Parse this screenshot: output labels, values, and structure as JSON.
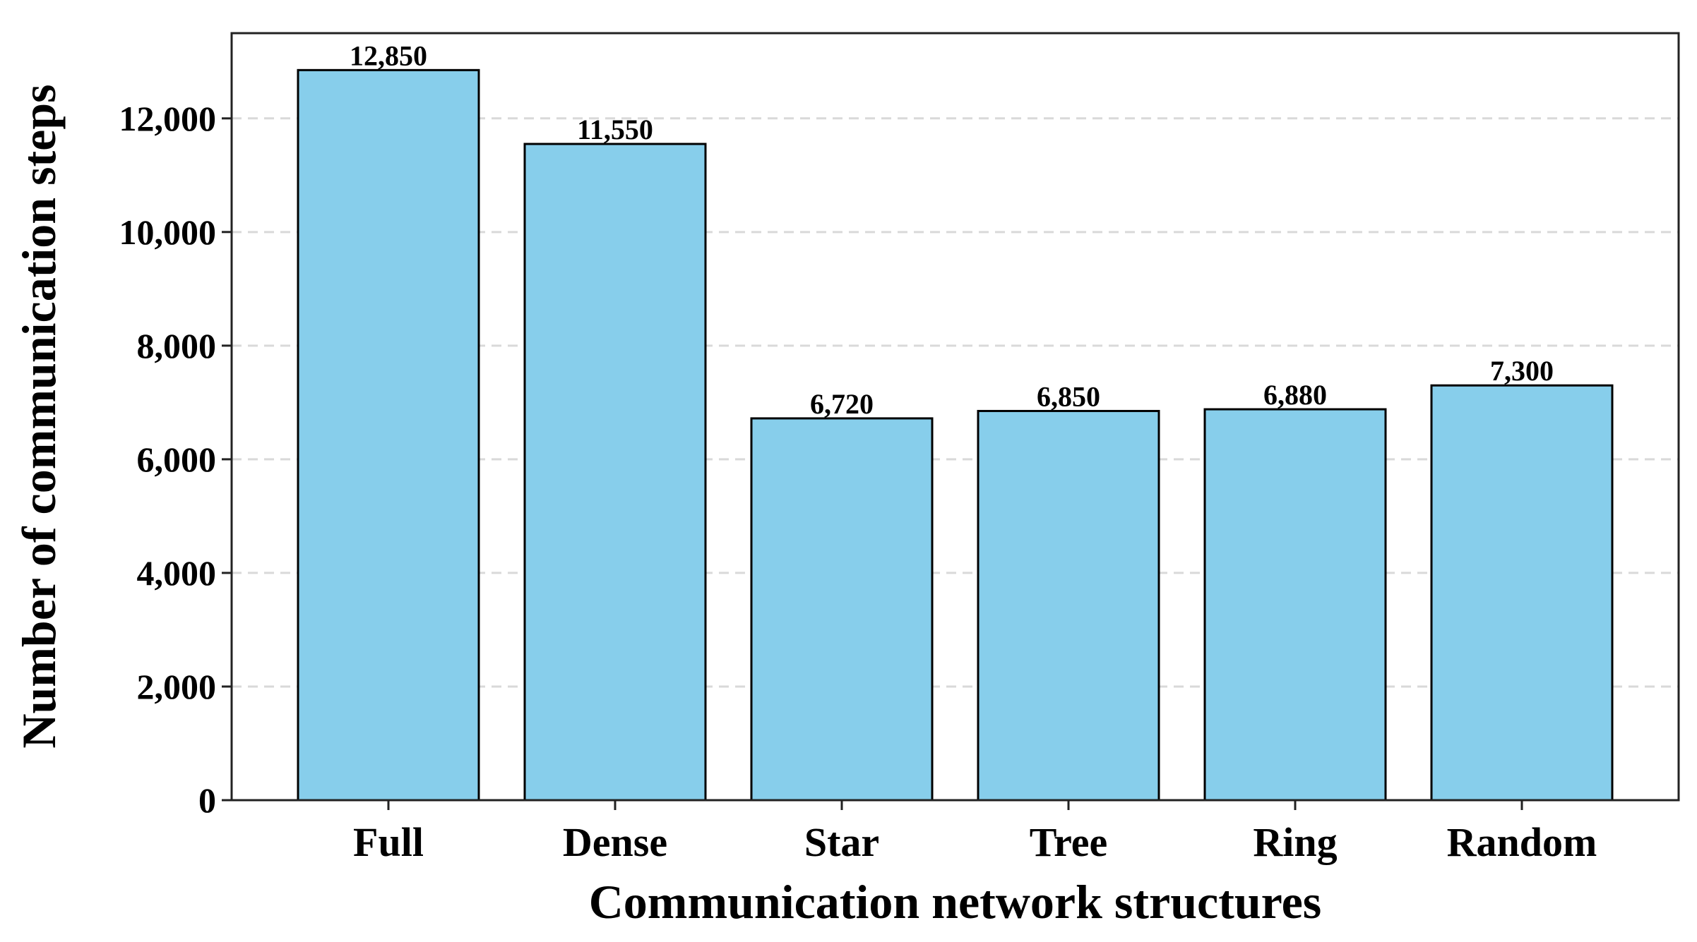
{
  "chart_data": {
    "type": "bar",
    "categories": [
      "Full",
      "Dense",
      "Star",
      "Tree",
      "Ring",
      "Random"
    ],
    "values": [
      12850,
      11550,
      6720,
      6850,
      6880,
      7300
    ],
    "data_labels": [
      "12,850",
      "11,550",
      "6,720",
      "6,850",
      "6,880",
      "7,300"
    ],
    "xlabel": "Communication network structures",
    "ylabel": "Number of communication steps",
    "ylim": [
      0,
      13500
    ],
    "yticks": [
      0,
      2000,
      4000,
      6000,
      8000,
      10000,
      12000
    ],
    "ytick_labels": [
      "0",
      "2,000",
      "4,000",
      "6,000",
      "8,000",
      "10,000",
      "12,000"
    ],
    "grid": "horizontal dashed",
    "bar_color": "#87CEEB",
    "bar_edge_color": "#000000",
    "grid_color": "#d9d9d9"
  }
}
